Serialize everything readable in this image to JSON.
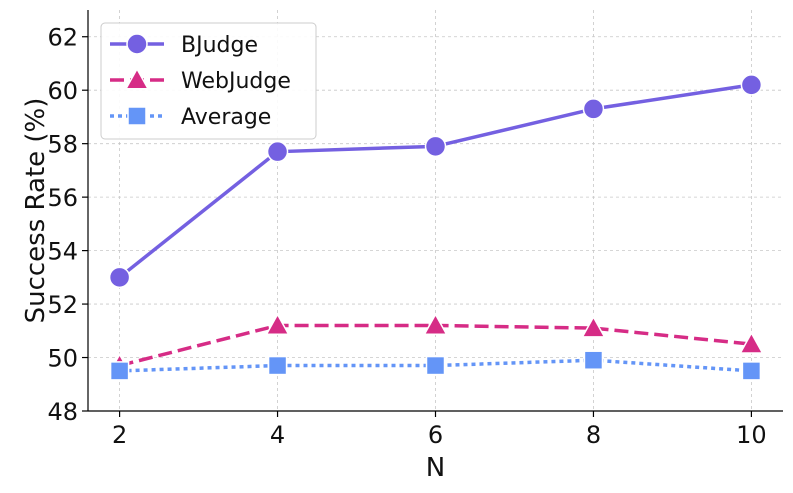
{
  "chart_data": {
    "type": "line",
    "title": "",
    "xlabel": "N",
    "ylabel": "Success Rate (%)",
    "x": [
      2,
      4,
      6,
      8,
      10
    ],
    "xticks": [
      "2",
      "4",
      "6",
      "8",
      "10"
    ],
    "yticks": [
      "48",
      "50",
      "52",
      "54",
      "56",
      "58",
      "60",
      "62"
    ],
    "xlim": [
      1.6,
      10.4
    ],
    "ylim": [
      48,
      63
    ],
    "grid": true,
    "legend_position": "top-left",
    "series": [
      {
        "name": "BJudge",
        "values": [
          53.0,
          57.7,
          57.9,
          59.3,
          60.2
        ],
        "color": "#7460e1",
        "marker": "circle",
        "line_style": "solid"
      },
      {
        "name": "WebJudge",
        "values": [
          49.7,
          51.2,
          51.2,
          51.1,
          50.5
        ],
        "color": "#d62c86",
        "marker": "triangle",
        "line_style": "dashed"
      },
      {
        "name": "Average",
        "values": [
          49.5,
          49.7,
          49.7,
          49.9,
          49.5
        ],
        "color": "#6495f7",
        "marker": "square",
        "line_style": "dotted"
      }
    ]
  }
}
